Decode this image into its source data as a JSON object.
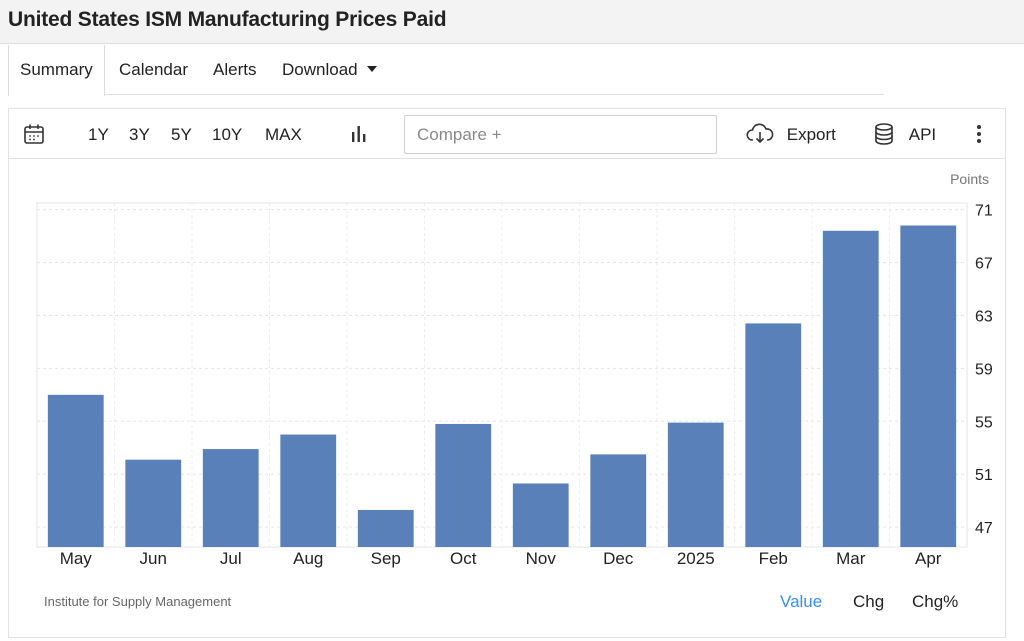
{
  "page": {
    "title": "United States ISM Manufacturing Prices Paid"
  },
  "tabs": [
    {
      "label": "Summary",
      "active": true
    },
    {
      "label": "Calendar",
      "active": false
    },
    {
      "label": "Alerts",
      "active": false
    },
    {
      "label": "Download",
      "active": false,
      "has_dropdown": true
    }
  ],
  "toolbar": {
    "ranges": [
      "1Y",
      "3Y",
      "5Y",
      "10Y",
      "MAX"
    ],
    "compare_placeholder": "Compare +",
    "export_label": "Export",
    "api_label": "API",
    "icons": [
      "calendar-icon",
      "bar-chart-icon",
      "cloud-download-icon",
      "database-icon",
      "more-vertical-icon"
    ]
  },
  "chart_data": {
    "type": "bar",
    "categories": [
      "May",
      "Jun",
      "Jul",
      "Aug",
      "Sep",
      "Oct",
      "Nov",
      "Dec",
      "2025",
      "Feb",
      "Mar",
      "Apr"
    ],
    "values": [
      57.0,
      52.1,
      52.9,
      54.0,
      48.3,
      54.8,
      50.3,
      52.5,
      54.9,
      62.4,
      69.4,
      69.8
    ],
    "unit_label": "Points",
    "yticks": [
      47,
      51,
      55,
      59,
      63,
      67,
      71
    ],
    "ylim": [
      45.5,
      71.5
    ],
    "grid": true,
    "bar_color": "#5a80ba"
  },
  "footer": {
    "source": "Institute for Supply Management",
    "view_options": [
      {
        "label": "Value",
        "active": true
      },
      {
        "label": "Chg",
        "active": false
      },
      {
        "label": "Chg%",
        "active": false
      }
    ]
  },
  "colors": {
    "accent": "#3b8ee0",
    "bar": "#5a80ba",
    "title_bar_bg": "#f3f3f3"
  }
}
